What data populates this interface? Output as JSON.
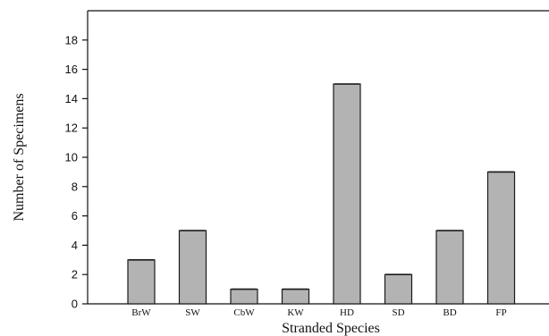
{
  "chart_data": {
    "type": "bar",
    "categories": [
      "BrW",
      "SW",
      "CbW",
      "KW",
      "HD",
      "SD",
      "BD",
      "FP"
    ],
    "values": [
      3,
      5,
      1,
      1,
      15,
      2,
      5,
      9
    ],
    "xlabel": "Stranded Species",
    "ylabel": "Number of Specimens",
    "ylim": [
      0,
      20
    ],
    "yticks": [
      0,
      2,
      4,
      6,
      8,
      10,
      12,
      14,
      16,
      18
    ],
    "grid": false,
    "bar_color": "#b3b3b3",
    "edge_color": "#1a1a1a"
  }
}
